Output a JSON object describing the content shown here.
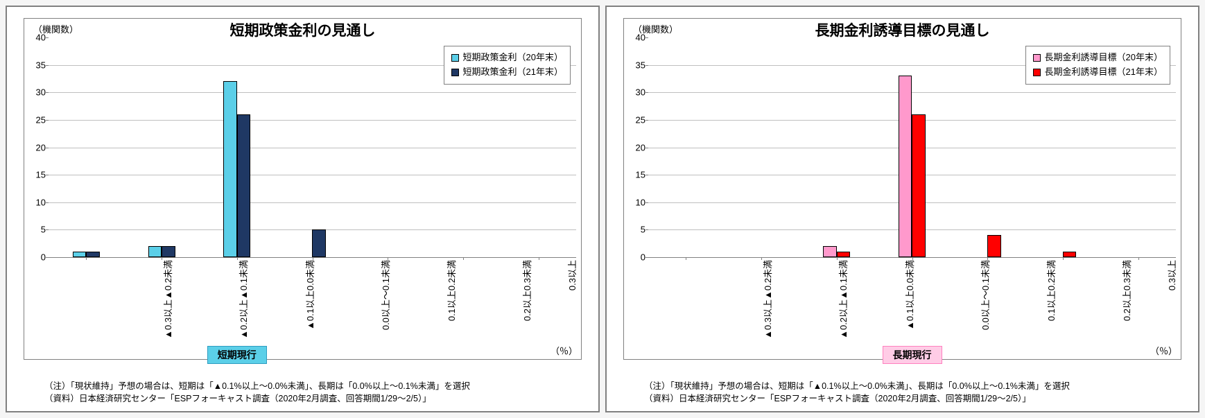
{
  "background_color": "#f5f5f5",
  "panel_border_color": "#808080",
  "inner_border_color": "#808080",
  "grid_color": "#bfbfbf",
  "axis_color": "#808080",
  "text_color": "#000000",
  "legend_border_color": "#808080",
  "y_axis_label": "（機関数）",
  "x_axis_label": "（％）",
  "ylim": [
    0,
    40
  ],
  "ytick_step": 5,
  "categories": [
    "▲0.3以上▲0.2未満",
    "▲0.2以上▲0.1未満",
    "▲0.1以上0.0未満",
    "0.0以上～0.1未満",
    "0.1以上0.2未満",
    "0.2以上0.3未満",
    "0.3以上"
  ],
  "bar_width_ratio": 0.18,
  "note_line1": "（注）「現状維持」予想の場合は、短期は「▲0.1%以上～0.0%未満」、長期は「0.0%以上～0.1%未満」を選択",
  "note_line2": "（資料）日本経済研究センター「ESPフォーキャスト調査（2020年2月調査、回答期間1/29～2/5）」",
  "left": {
    "title": "短期政策金利の見通し",
    "series": [
      {
        "label": "短期政策金利（20年末）",
        "color": "#5bcfe8",
        "values": [
          1,
          2,
          32,
          0,
          0,
          0,
          0
        ]
      },
      {
        "label": "短期政策金利（21年末）",
        "color": "#1f3864",
        "values": [
          1,
          2,
          26,
          5,
          0,
          0,
          0
        ]
      }
    ],
    "current_label": "短期現行",
    "current_index": 2,
    "current_bg": "#5bcfe8",
    "current_border": "#2e9cc0"
  },
  "right": {
    "title": "長期金利誘導目標の見通し",
    "series": [
      {
        "label": "長期金利誘導目標（20年末）",
        "color": "#ff99cc",
        "values": [
          0,
          0,
          2,
          33,
          0,
          0,
          0
        ]
      },
      {
        "label": "長期金利誘導目標（21年末）",
        "color": "#ff0000",
        "values": [
          0,
          0,
          1,
          26,
          4,
          1,
          0
        ]
      }
    ],
    "current_label": "長期現行",
    "current_index": 3,
    "current_bg": "#ffcce6",
    "current_border": "#ff80bf"
  }
}
